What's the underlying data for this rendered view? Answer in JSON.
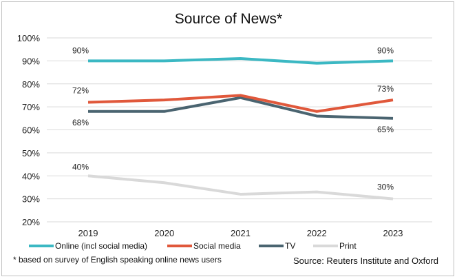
{
  "chart_data": {
    "type": "line",
    "title": "Source of News*",
    "xlabel": "",
    "ylabel": "",
    "categories": [
      "2019",
      "2020",
      "2021",
      "2022",
      "2023"
    ],
    "ylim": [
      20,
      100
    ],
    "yticks": [
      20,
      30,
      40,
      50,
      60,
      70,
      80,
      90,
      100
    ],
    "ytick_labels": [
      "20%",
      "30%",
      "40%",
      "50%",
      "60%",
      "70%",
      "80%",
      "90%",
      "100%"
    ],
    "grid": true,
    "legend_position": "bottom",
    "series": [
      {
        "name": "Online (incl social media)",
        "color": "#3bb8c3",
        "values": [
          90,
          90,
          91,
          89,
          90
        ],
        "labels": {
          "0": "90%",
          "4": "90%"
        }
      },
      {
        "name": "Social media",
        "color": "#e0583b",
        "values": [
          72,
          73,
          75,
          68,
          73
        ],
        "labels": {
          "0": "72%",
          "4": "73%"
        }
      },
      {
        "name": "TV",
        "color": "#4a6470",
        "values": [
          68,
          68,
          74,
          66,
          65
        ],
        "labels": {
          "0": "68%",
          "4": "65%"
        }
      },
      {
        "name": "Print",
        "color": "#d9d9d9",
        "values": [
          40,
          37,
          32,
          33,
          30
        ],
        "labels": {
          "0": "40%",
          "4": "30%"
        }
      }
    ]
  },
  "footnote": "* based on survey of English speaking online news users",
  "source": "Source: Reuters Institute and Oxford"
}
